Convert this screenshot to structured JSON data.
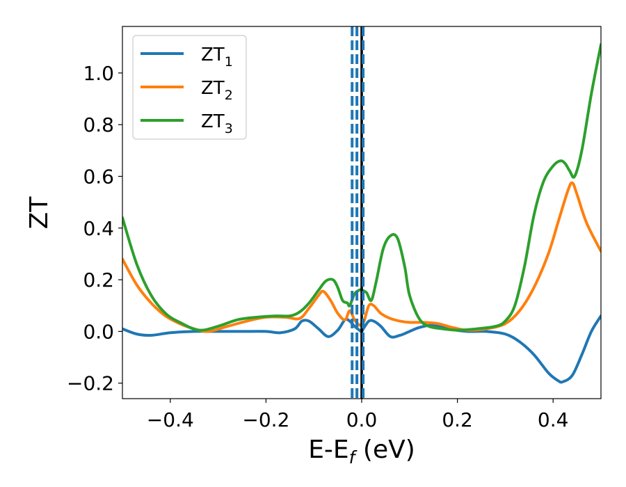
{
  "chart_data": {
    "type": "line",
    "xlabel": "E-E",
    "xlabel_sub": "f",
    "xlabel_unit": " (eV)",
    "ylabel": "ZT",
    "xlim": [
      -0.5,
      0.5
    ],
    "ylim": [
      -0.26,
      1.18
    ],
    "xticks": [
      -0.4,
      -0.2,
      0.0,
      0.2,
      0.4
    ],
    "xtick_labels": [
      "−0.4",
      "−0.2",
      "0.0",
      "0.2",
      "0.4"
    ],
    "yticks": [
      -0.2,
      0.0,
      0.2,
      0.4,
      0.6,
      0.8,
      1.0
    ],
    "ytick_labels": [
      "−0.2",
      "0.0",
      "0.2",
      "0.4",
      "0.6",
      "0.8",
      "1.0"
    ],
    "grid": false,
    "legend": "top-left",
    "vlines": [
      {
        "x": 0.0,
        "color": "#000000",
        "style": "solid"
      },
      {
        "x": -0.02,
        "color": "#1f77b4",
        "style": "dashed"
      },
      {
        "x": -0.01,
        "color": "#1f77b4",
        "style": "dashed"
      },
      {
        "x": 0.003,
        "color": "#1f77b4",
        "style": "dashed"
      }
    ],
    "series": [
      {
        "name": "ZT",
        "sub": "1",
        "color": "#1f77b4",
        "x": [
          -0.5,
          -0.47,
          -0.44,
          -0.4,
          -0.35,
          -0.3,
          -0.25,
          -0.2,
          -0.17,
          -0.14,
          -0.125,
          -0.11,
          -0.09,
          -0.07,
          -0.05,
          -0.035,
          -0.025,
          -0.015,
          -0.005,
          0.0,
          0.005,
          0.015,
          0.025,
          0.04,
          0.06,
          0.08,
          0.1,
          0.12,
          0.15,
          0.18,
          0.22,
          0.26,
          0.3,
          0.33,
          0.36,
          0.39,
          0.41,
          0.42,
          0.44,
          0.46,
          0.48,
          0.5
        ],
        "y": [
          0.01,
          -0.01,
          -0.015,
          -0.005,
          0.0,
          0.0,
          0.0,
          0.0,
          -0.005,
          0.01,
          0.04,
          0.04,
          0.01,
          -0.02,
          0.005,
          0.045,
          0.04,
          0.02,
          0.005,
          0.0,
          0.015,
          0.04,
          0.04,
          0.02,
          -0.02,
          -0.015,
          0.0,
          0.015,
          0.025,
          0.01,
          0.0,
          0.0,
          -0.01,
          -0.04,
          -0.09,
          -0.16,
          -0.19,
          -0.195,
          -0.17,
          -0.09,
          0.0,
          0.06
        ]
      },
      {
        "name": "ZT",
        "sub": "2",
        "color": "#ff7f0e",
        "x": [
          -0.5,
          -0.47,
          -0.44,
          -0.41,
          -0.38,
          -0.35,
          -0.32,
          -0.28,
          -0.24,
          -0.2,
          -0.16,
          -0.13,
          -0.11,
          -0.09,
          -0.08,
          -0.065,
          -0.05,
          -0.035,
          -0.025,
          -0.015,
          -0.005,
          0.0,
          0.005,
          0.015,
          0.025,
          0.04,
          0.06,
          0.08,
          0.1,
          0.13,
          0.16,
          0.19,
          0.22,
          0.26,
          0.3,
          0.33,
          0.36,
          0.39,
          0.41,
          0.43,
          0.44,
          0.45,
          0.47,
          0.5
        ],
        "y": [
          0.28,
          0.18,
          0.11,
          0.06,
          0.03,
          0.01,
          0.0,
          0.02,
          0.04,
          0.055,
          0.055,
          0.05,
          0.09,
          0.14,
          0.155,
          0.12,
          0.07,
          0.045,
          0.08,
          0.045,
          0.025,
          0.03,
          0.04,
          0.1,
          0.1,
          0.07,
          0.05,
          0.04,
          0.035,
          0.035,
          0.03,
          0.015,
          0.005,
          0.01,
          0.03,
          0.08,
          0.17,
          0.3,
          0.42,
          0.54,
          0.575,
          0.53,
          0.42,
          0.31
        ]
      },
      {
        "name": "ZT",
        "sub": "3",
        "color": "#2ca02c",
        "x": [
          -0.5,
          -0.47,
          -0.44,
          -0.41,
          -0.38,
          -0.34,
          -0.3,
          -0.26,
          -0.22,
          -0.18,
          -0.15,
          -0.13,
          -0.11,
          -0.09,
          -0.075,
          -0.06,
          -0.05,
          -0.04,
          -0.03,
          -0.025,
          -0.015,
          -0.005,
          0.0,
          0.01,
          0.02,
          0.03,
          0.045,
          0.06,
          0.075,
          0.09,
          0.1,
          0.12,
          0.14,
          0.17,
          0.2,
          0.24,
          0.28,
          0.3,
          0.32,
          0.34,
          0.36,
          0.38,
          0.4,
          0.415,
          0.425,
          0.435,
          0.445,
          0.46,
          0.48,
          0.5
        ],
        "y": [
          0.44,
          0.26,
          0.14,
          0.07,
          0.035,
          0.005,
          0.02,
          0.045,
          0.055,
          0.06,
          0.06,
          0.075,
          0.11,
          0.16,
          0.195,
          0.2,
          0.17,
          0.12,
          0.11,
          0.1,
          0.145,
          0.16,
          0.16,
          0.15,
          0.12,
          0.19,
          0.32,
          0.37,
          0.36,
          0.25,
          0.14,
          0.05,
          0.02,
          0.01,
          0.005,
          0.01,
          0.02,
          0.04,
          0.1,
          0.25,
          0.45,
          0.58,
          0.64,
          0.66,
          0.65,
          0.62,
          0.6,
          0.7,
          0.92,
          1.11
        ]
      }
    ]
  }
}
